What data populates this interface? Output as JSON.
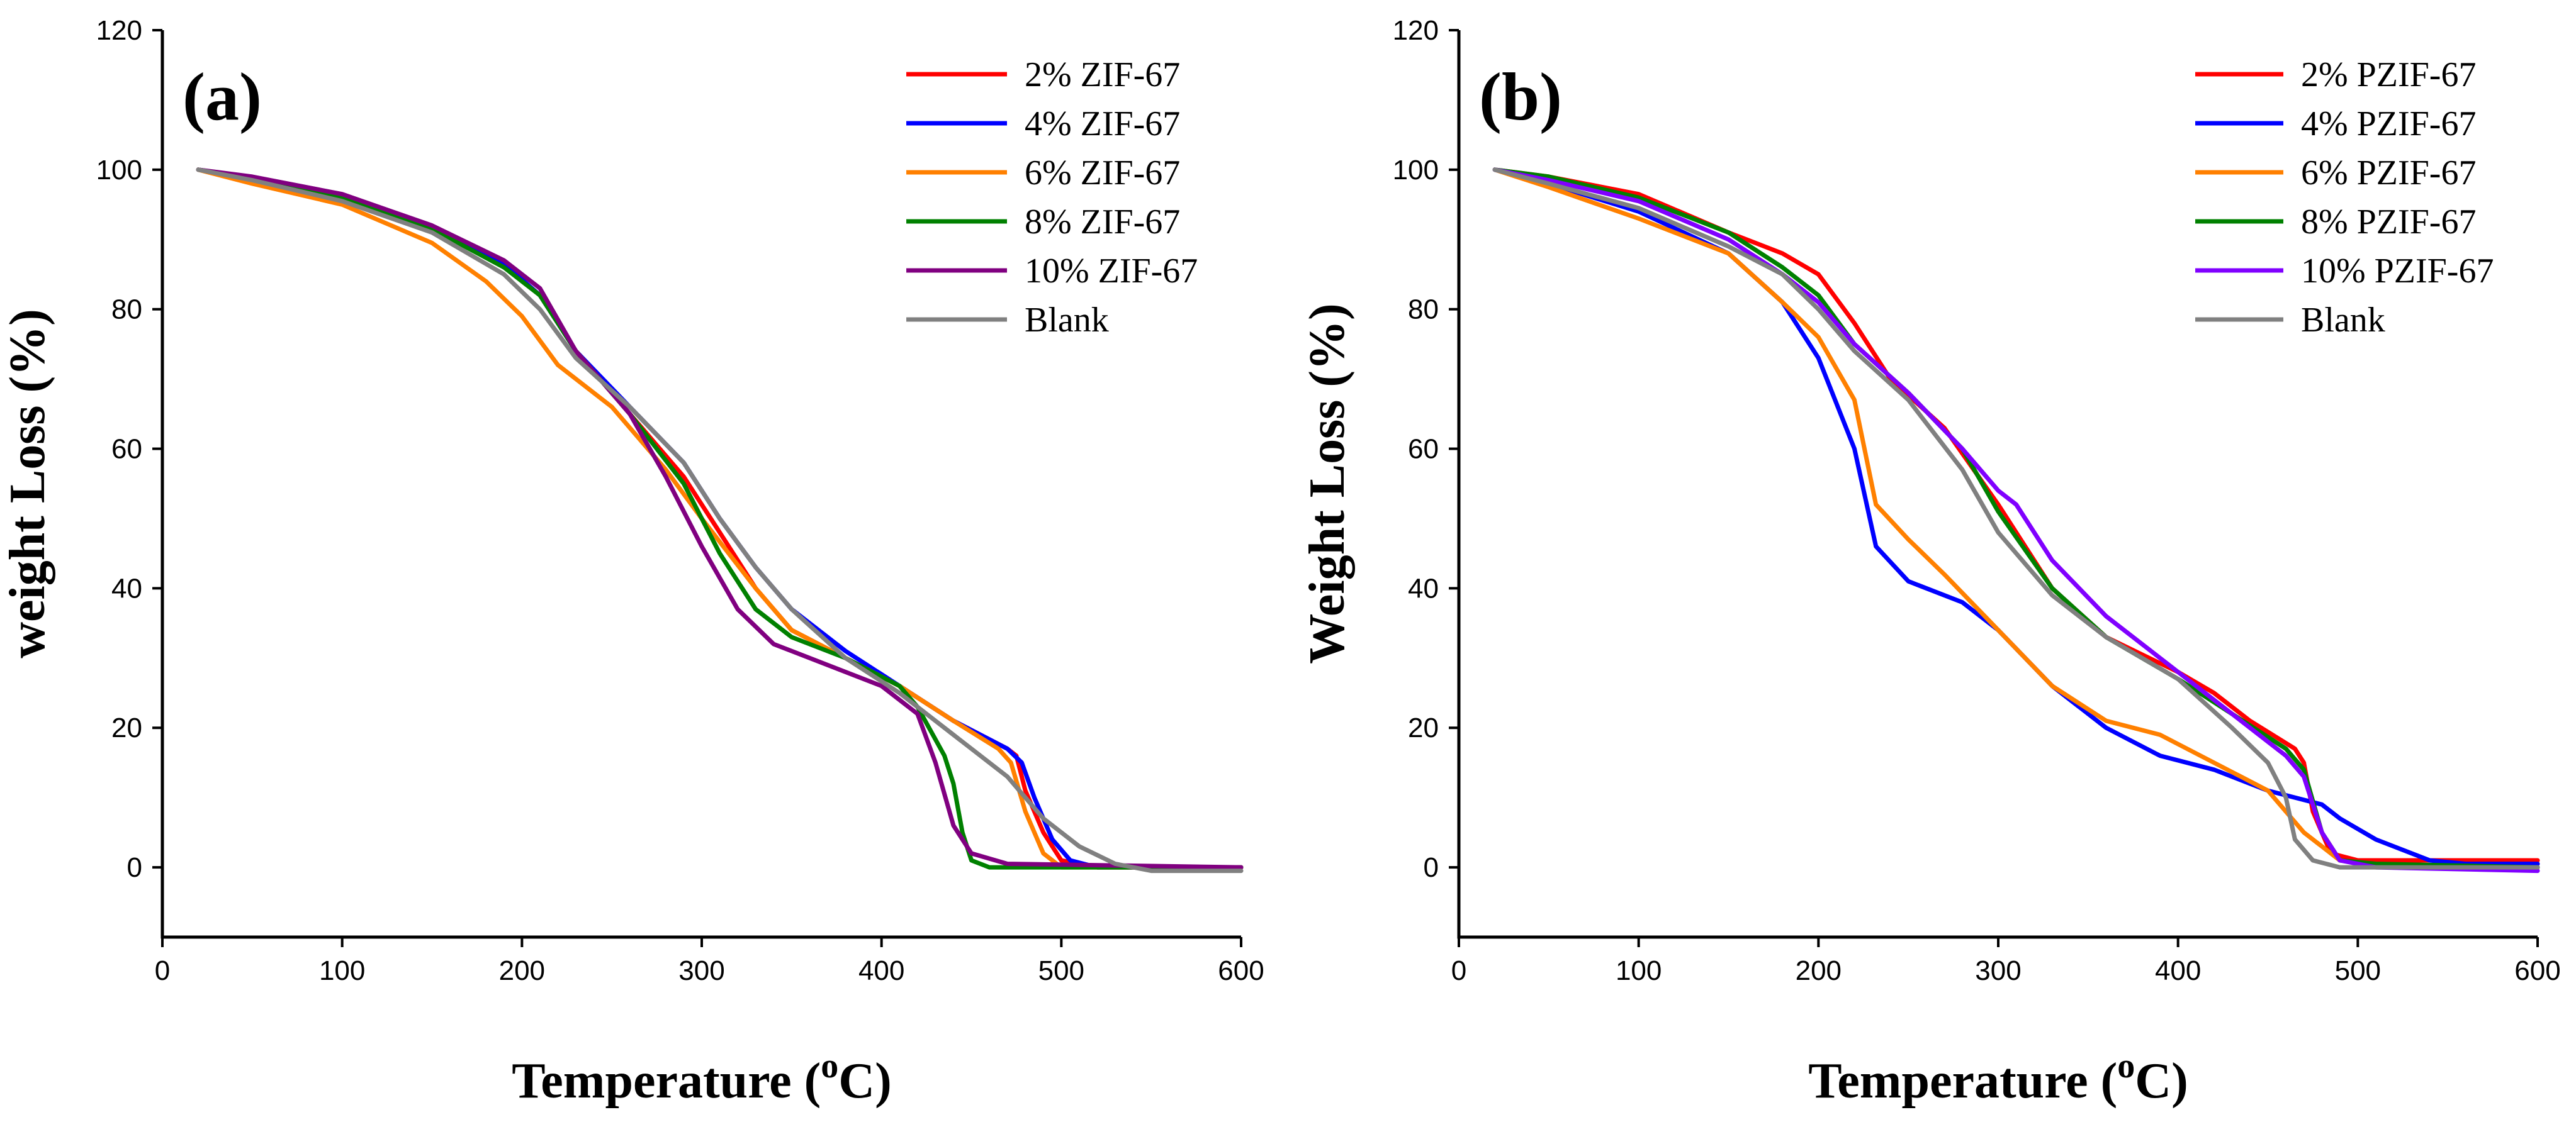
{
  "chart_data": [
    {
      "type": "line",
      "panel_label": "(a)",
      "xlabel": "Temperature",
      "xlabel_unit_prefix": "(",
      "xlabel_unit_sup": "o",
      "xlabel_unit_suffix": "C)",
      "ylabel": "weight Loss (%)",
      "xlim": [
        0,
        600
      ],
      "ylim": [
        -10,
        120
      ],
      "xticks": [
        0,
        100,
        200,
        300,
        400,
        500,
        600
      ],
      "yticks": [
        0,
        20,
        40,
        60,
        80,
        100,
        120
      ],
      "legend_position": "top-right",
      "series": [
        {
          "name": "2% ZIF-67",
          "color": "#ff0000",
          "points": [
            [
              20,
              100
            ],
            [
              50,
              98.8
            ],
            [
              100,
              96
            ],
            [
              150,
              91.5
            ],
            [
              190,
              86.5
            ],
            [
              210,
              82
            ],
            [
              230,
              74
            ],
            [
              260,
              65
            ],
            [
              290,
              56
            ],
            [
              310,
              48
            ],
            [
              330,
              40
            ],
            [
              350,
              34
            ],
            [
              380,
              30
            ],
            [
              410,
              26
            ],
            [
              440,
              21
            ],
            [
              470,
              17
            ],
            [
              475,
              16
            ],
            [
              480,
              11
            ],
            [
              490,
              5
            ],
            [
              500,
              1
            ],
            [
              520,
              0
            ],
            [
              600,
              0
            ]
          ]
        },
        {
          "name": "4% ZIF-67",
          "color": "#0000ff",
          "points": [
            [
              20,
              100
            ],
            [
              50,
              98.8
            ],
            [
              100,
              96
            ],
            [
              150,
              91.5
            ],
            [
              190,
              86.5
            ],
            [
              210,
              82
            ],
            [
              230,
              74
            ],
            [
              260,
              66
            ],
            [
              290,
              58
            ],
            [
              310,
              50
            ],
            [
              330,
              43
            ],
            [
              350,
              37
            ],
            [
              380,
              31
            ],
            [
              410,
              26
            ],
            [
              440,
              21
            ],
            [
              470,
              17
            ],
            [
              478,
              15
            ],
            [
              485,
              10
            ],
            [
              495,
              4
            ],
            [
              505,
              1
            ],
            [
              520,
              0
            ],
            [
              600,
              0
            ]
          ]
        },
        {
          "name": "6% ZIF-67",
          "color": "#ff8000",
          "points": [
            [
              20,
              100
            ],
            [
              50,
              98
            ],
            [
              100,
              95
            ],
            [
              150,
              89.5
            ],
            [
              180,
              84
            ],
            [
              200,
              79
            ],
            [
              220,
              72
            ],
            [
              250,
              66
            ],
            [
              280,
              57
            ],
            [
              300,
              50
            ],
            [
              330,
              40
            ],
            [
              350,
              34
            ],
            [
              380,
              30
            ],
            [
              410,
              26
            ],
            [
              440,
              21
            ],
            [
              465,
              17
            ],
            [
              472,
              15
            ],
            [
              480,
              8
            ],
            [
              490,
              2
            ],
            [
              500,
              0
            ],
            [
              600,
              0
            ]
          ]
        },
        {
          "name": "8% ZIF-67",
          "color": "#008000",
          "points": [
            [
              20,
              100
            ],
            [
              50,
              98.8
            ],
            [
              100,
              96
            ],
            [
              150,
              91.5
            ],
            [
              190,
              86
            ],
            [
              210,
              82
            ],
            [
              230,
              74
            ],
            [
              260,
              65
            ],
            [
              290,
              55
            ],
            [
              310,
              45
            ],
            [
              330,
              37
            ],
            [
              350,
              33
            ],
            [
              380,
              30
            ],
            [
              410,
              26
            ],
            [
              420,
              23
            ],
            [
              435,
              16
            ],
            [
              440,
              12
            ],
            [
              445,
              5
            ],
            [
              450,
              1
            ],
            [
              460,
              0
            ],
            [
              600,
              0
            ]
          ]
        },
        {
          "name": "10% ZIF-67",
          "color": "#800080",
          "points": [
            [
              20,
              100
            ],
            [
              50,
              99
            ],
            [
              100,
              96.5
            ],
            [
              150,
              92
            ],
            [
              190,
              87
            ],
            [
              210,
              83
            ],
            [
              230,
              74
            ],
            [
              260,
              65
            ],
            [
              280,
              56
            ],
            [
              300,
              46
            ],
            [
              320,
              37
            ],
            [
              340,
              32
            ],
            [
              370,
              29
            ],
            [
              400,
              26
            ],
            [
              420,
              22
            ],
            [
              430,
              15
            ],
            [
              440,
              6
            ],
            [
              450,
              2
            ],
            [
              470,
              0.5
            ],
            [
              600,
              0
            ]
          ]
        },
        {
          "name": "Blank",
          "color": "#808080",
          "points": [
            [
              20,
              100
            ],
            [
              50,
              98.5
            ],
            [
              100,
              95.5
            ],
            [
              150,
              91
            ],
            [
              190,
              85
            ],
            [
              210,
              80
            ],
            [
              230,
              73
            ],
            [
              260,
              66
            ],
            [
              290,
              58
            ],
            [
              310,
              50
            ],
            [
              330,
              43
            ],
            [
              350,
              37
            ],
            [
              380,
              30
            ],
            [
              410,
              25
            ],
            [
              440,
              19
            ],
            [
              470,
              13
            ],
            [
              490,
              7
            ],
            [
              510,
              3
            ],
            [
              530,
              0.5
            ],
            [
              550,
              -0.5
            ],
            [
              600,
              -0.5
            ]
          ]
        }
      ]
    },
    {
      "type": "line",
      "panel_label": "(b)",
      "xlabel": "Temperature",
      "xlabel_unit_prefix": "(",
      "xlabel_unit_sup": "o",
      "xlabel_unit_suffix": "C)",
      "ylabel": "Weight Loss (%)",
      "xlim": [
        0,
        600
      ],
      "ylim": [
        -10,
        120
      ],
      "xticks": [
        0,
        100,
        200,
        300,
        400,
        500,
        600
      ],
      "yticks": [
        0,
        20,
        40,
        60,
        80,
        100,
        120
      ],
      "legend_position": "top-right",
      "series": [
        {
          "name": "2% PZIF-67",
          "color": "#ff0000",
          "points": [
            [
              20,
              100
            ],
            [
              50,
              99
            ],
            [
              100,
              96.5
            ],
            [
              150,
              91
            ],
            [
              180,
              88
            ],
            [
              200,
              85
            ],
            [
              220,
              78
            ],
            [
              240,
              70
            ],
            [
              270,
              63
            ],
            [
              300,
              52
            ],
            [
              330,
              40
            ],
            [
              360,
              33
            ],
            [
              400,
              28
            ],
            [
              420,
              25
            ],
            [
              440,
              21
            ],
            [
              465,
              17
            ],
            [
              470,
              15
            ],
            [
              475,
              8
            ],
            [
              485,
              2
            ],
            [
              500,
              1
            ],
            [
              600,
              1
            ]
          ]
        },
        {
          "name": "4% PZIF-67",
          "color": "#0000ff",
          "points": [
            [
              20,
              100
            ],
            [
              50,
              98
            ],
            [
              100,
              94
            ],
            [
              150,
              88
            ],
            [
              180,
              81
            ],
            [
              200,
              73
            ],
            [
              220,
              60
            ],
            [
              232,
              46
            ],
            [
              250,
              41
            ],
            [
              280,
              38
            ],
            [
              300,
              34
            ],
            [
              330,
              26
            ],
            [
              360,
              20
            ],
            [
              390,
              16
            ],
            [
              420,
              14
            ],
            [
              450,
              11
            ],
            [
              480,
              9
            ],
            [
              490,
              7
            ],
            [
              510,
              4
            ],
            [
              540,
              1
            ],
            [
              560,
              0.5
            ],
            [
              600,
              0.5
            ]
          ]
        },
        {
          "name": "6% PZIF-67",
          "color": "#ff8000",
          "points": [
            [
              20,
              100
            ],
            [
              50,
              97.5
            ],
            [
              100,
              93
            ],
            [
              150,
              88
            ],
            [
              180,
              81
            ],
            [
              200,
              76
            ],
            [
              220,
              67
            ],
            [
              232,
              52
            ],
            [
              250,
              47
            ],
            [
              270,
              42
            ],
            [
              300,
              34
            ],
            [
              330,
              26
            ],
            [
              360,
              21
            ],
            [
              390,
              19
            ],
            [
              420,
              15
            ],
            [
              450,
              11
            ],
            [
              470,
              5
            ],
            [
              490,
              1
            ],
            [
              520,
              0
            ],
            [
              600,
              0
            ]
          ]
        },
        {
          "name": "8% PZIF-67",
          "color": "#008000",
          "points": [
            [
              20,
              100
            ],
            [
              50,
              99
            ],
            [
              100,
              96
            ],
            [
              150,
              91
            ],
            [
              180,
              86
            ],
            [
              200,
              82
            ],
            [
              220,
              75
            ],
            [
              250,
              68
            ],
            [
              280,
              60
            ],
            [
              300,
              51
            ],
            [
              330,
              40
            ],
            [
              360,
              33
            ],
            [
              400,
              27
            ],
            [
              430,
              22
            ],
            [
              460,
              17
            ],
            [
              470,
              14
            ],
            [
              480,
              5
            ],
            [
              490,
              1
            ],
            [
              510,
              0.5
            ],
            [
              600,
              0
            ]
          ]
        },
        {
          "name": "10% PZIF-67",
          "color": "#8000ff",
          "points": [
            [
              20,
              100
            ],
            [
              50,
              98.5
            ],
            [
              100,
              95.5
            ],
            [
              150,
              90
            ],
            [
              180,
              85
            ],
            [
              200,
              81
            ],
            [
              220,
              75
            ],
            [
              250,
              68
            ],
            [
              280,
              60
            ],
            [
              300,
              54
            ],
            [
              310,
              52
            ],
            [
              330,
              44
            ],
            [
              360,
              36
            ],
            [
              400,
              28
            ],
            [
              430,
              22
            ],
            [
              460,
              16
            ],
            [
              470,
              13
            ],
            [
              480,
              5
            ],
            [
              490,
              1
            ],
            [
              510,
              0
            ],
            [
              600,
              -0.5
            ]
          ]
        },
        {
          "name": "Blank",
          "color": "#808080",
          "points": [
            [
              20,
              100
            ],
            [
              50,
              98
            ],
            [
              100,
              94.5
            ],
            [
              150,
              89
            ],
            [
              180,
              85
            ],
            [
              200,
              80
            ],
            [
              220,
              74
            ],
            [
              250,
              67
            ],
            [
              280,
              57
            ],
            [
              300,
              48
            ],
            [
              330,
              39
            ],
            [
              360,
              33
            ],
            [
              400,
              27
            ],
            [
              430,
              20
            ],
            [
              450,
              15
            ],
            [
              460,
              10
            ],
            [
              465,
              4
            ],
            [
              475,
              1
            ],
            [
              490,
              0
            ],
            [
              600,
              0
            ]
          ]
        }
      ]
    }
  ]
}
